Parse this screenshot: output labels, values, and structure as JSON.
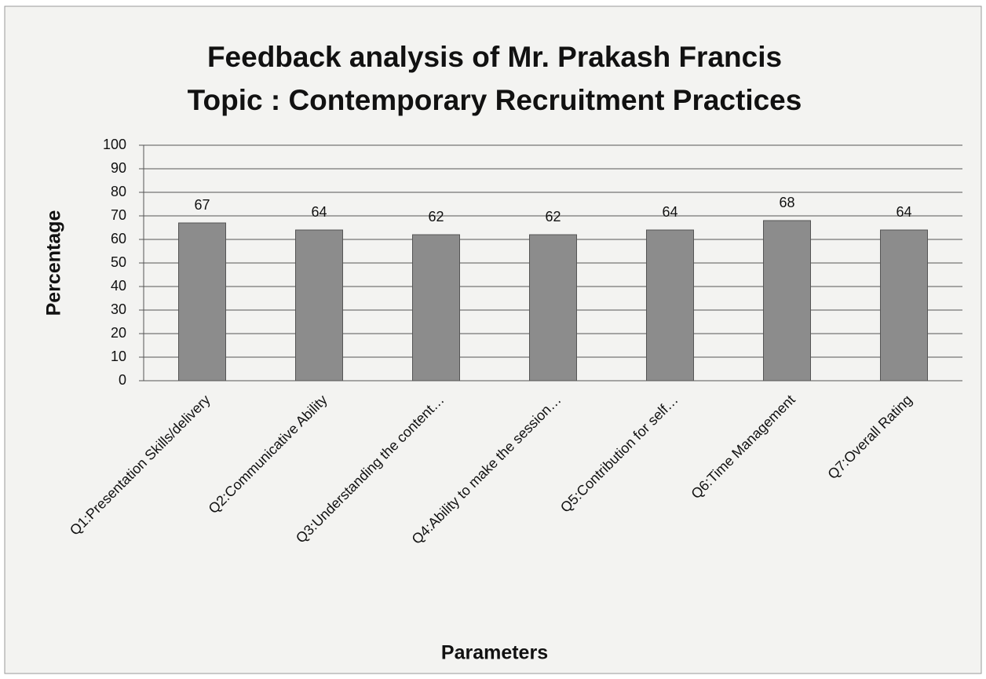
{
  "chart_data": {
    "type": "bar",
    "title": [
      "Feedback analysis of Mr. Prakash Francis",
      "Topic : Contemporary Recruitment Practices"
    ],
    "categories": [
      "Q1:Presentation Skills/delivery",
      "Q2:Communicative Ability",
      "Q3:Understanding the content…",
      "Q4:Ability to make the session…",
      "Q5:Contribution for self…",
      "Q6:Time Management",
      "Q7:Overall Rating"
    ],
    "values": [
      67,
      64,
      62,
      62,
      64,
      68,
      64
    ],
    "color": "#8c8c8c",
    "ylabel": "Percentage",
    "xlabel": "Parameters",
    "ylim": [
      0,
      100
    ],
    "yticks": [
      0,
      10,
      20,
      30,
      40,
      50,
      60,
      70,
      80,
      90,
      100
    ],
    "grid": true
  }
}
